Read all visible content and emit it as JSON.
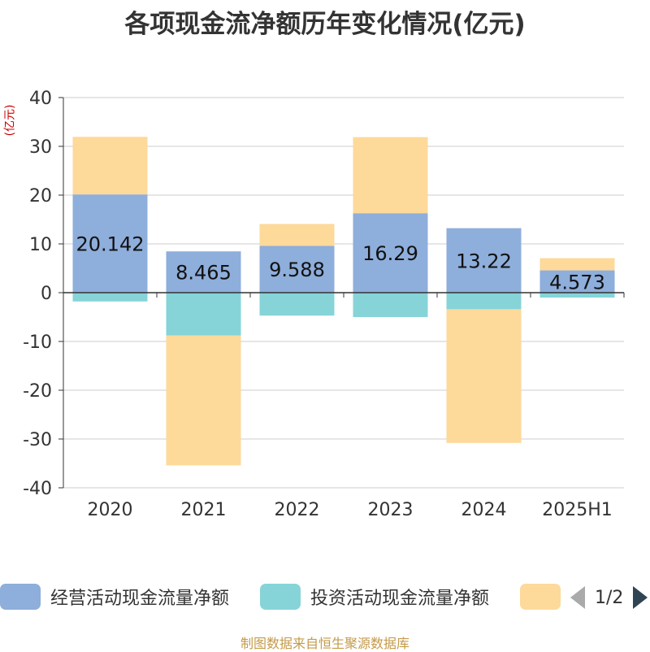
{
  "title": "各项现金流净额历年变化情况(亿元)",
  "unit_label": "(亿元)",
  "source": "制图数据来自恒生聚源数据库",
  "legend": {
    "items": [
      {
        "label": "经营活动现金流量净额",
        "color": "#8eaedb"
      },
      {
        "label": "投资活动现金流量净额",
        "color": "#86d4d8"
      },
      {
        "label": "",
        "color": "#fdd99a"
      }
    ],
    "page": "1/2"
  },
  "chart_data": {
    "type": "bar",
    "stacked": true,
    "categories": [
      "2020",
      "2021",
      "2022",
      "2023",
      "2024",
      "2025H1"
    ],
    "ylim": [
      -40,
      40
    ],
    "yticks": [
      -40,
      -30,
      -20,
      -10,
      0,
      10,
      20,
      30,
      40
    ],
    "grid": true,
    "legend_position": "bottom",
    "series": [
      {
        "name": "经营活动现金流量净额",
        "color": "#8eaedb",
        "values": [
          20.142,
          8.465,
          9.588,
          16.29,
          13.22,
          4.573
        ],
        "labels": [
          "20.142",
          "8.465",
          "9.588",
          "16.29",
          "13.22",
          "4.573"
        ]
      },
      {
        "name": "投资活动现金流量净额",
        "color": "#86d4d8",
        "values": [
          -1.8,
          -8.8,
          -4.7,
          -5.0,
          -3.4,
          -1.0
        ]
      },
      {
        "color": "#fdd99a",
        "values": [
          11.8,
          -26.6,
          4.5,
          15.6,
          -27.4,
          2.5
        ]
      }
    ]
  }
}
